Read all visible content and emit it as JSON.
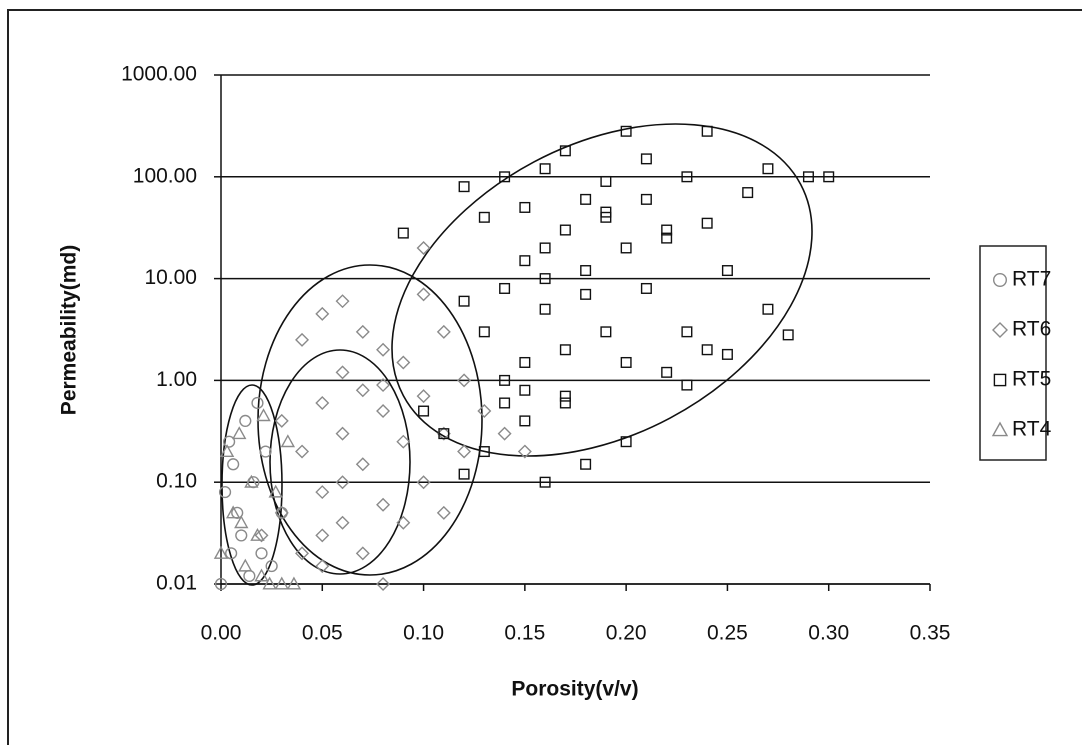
{
  "chart_data": {
    "type": "scatter",
    "x_label": "Porosity(v/v)",
    "y_label": "Permeability(md)",
    "log_y": true,
    "grid": true,
    "legend": "right",
    "xlim": [
      0,
      0.35
    ],
    "ylim": [
      0.01,
      1000
    ],
    "xticks": [
      {
        "value": 0,
        "label": "0.00"
      },
      {
        "value": 0.05,
        "label": "0.05"
      },
      {
        "value": 0.1,
        "label": "0.10"
      },
      {
        "value": 0.15,
        "label": "0.15"
      },
      {
        "value": 0.2,
        "label": "0.20"
      },
      {
        "value": 0.25,
        "label": "0.25"
      },
      {
        "value": 0.3,
        "label": "0.30"
      },
      {
        "value": 0.35,
        "label": "0.35"
      }
    ],
    "yticks": [
      {
        "value": 0.01,
        "label": "0.01"
      },
      {
        "value": 0.1,
        "label": "0.10"
      },
      {
        "value": 1,
        "label": "1.00"
      },
      {
        "value": 10,
        "label": "10.00"
      },
      {
        "value": 100,
        "label": "100.00"
      },
      {
        "value": 1000,
        "label": "1000.00"
      }
    ],
    "series": [
      {
        "name": "RT7",
        "color": "#8a8a8a",
        "marker": "circle",
        "x": [
          0.0,
          0.002,
          0.004,
          0.005,
          0.006,
          0.008,
          0.01,
          0.012,
          0.014,
          0.016,
          0.018,
          0.02,
          0.022,
          0.025,
          0.03
        ],
        "values": [
          0.01,
          0.08,
          0.25,
          0.02,
          0.15,
          0.05,
          0.03,
          0.4,
          0.012,
          0.1,
          0.6,
          0.02,
          0.2,
          0.015,
          0.05
        ]
      },
      {
        "name": "RT6",
        "color": "#8a8a8a",
        "marker": "diamond",
        "x": [
          0.02,
          0.03,
          0.03,
          0.04,
          0.04,
          0.04,
          0.05,
          0.05,
          0.05,
          0.05,
          0.06,
          0.06,
          0.06,
          0.06,
          0.07,
          0.07,
          0.07,
          0.07,
          0.08,
          0.08,
          0.08,
          0.08,
          0.09,
          0.09,
          0.09,
          0.1,
          0.1,
          0.1,
          0.11,
          0.11,
          0.11,
          0.12,
          0.12,
          0.13,
          0.14,
          0.15,
          0.06,
          0.05,
          0.08,
          0.1
        ],
        "values": [
          0.03,
          0.4,
          0.05,
          0.2,
          2.5,
          0.02,
          0.6,
          0.08,
          4.5,
          0.03,
          0.3,
          6,
          0.04,
          1.2,
          0.15,
          3,
          0.02,
          0.8,
          0.5,
          0.06,
          2,
          0.01,
          0.25,
          1.5,
          0.04,
          20,
          0.7,
          0.1,
          0.3,
          3,
          0.05,
          0.2,
          1,
          0.5,
          0.3,
          0.2,
          0.1,
          0.015,
          0.9,
          7
        ]
      },
      {
        "name": "RT5",
        "color": "#111111",
        "marker": "square",
        "x": [
          0.09,
          0.1,
          0.11,
          0.12,
          0.12,
          0.13,
          0.13,
          0.14,
          0.14,
          0.14,
          0.15,
          0.15,
          0.15,
          0.15,
          0.16,
          0.16,
          0.16,
          0.16,
          0.17,
          0.17,
          0.17,
          0.17,
          0.18,
          0.18,
          0.18,
          0.19,
          0.19,
          0.19,
          0.2,
          0.2,
          0.2,
          0.21,
          0.21,
          0.21,
          0.22,
          0.22,
          0.23,
          0.23,
          0.24,
          0.24,
          0.25,
          0.25,
          0.26,
          0.27,
          0.27,
          0.28,
          0.29,
          0.3,
          0.16,
          0.14,
          0.13,
          0.18,
          0.2,
          0.12,
          0.15,
          0.17,
          0.22,
          0.23,
          0.24,
          0.19
        ],
        "values": [
          28,
          0.5,
          0.3,
          80,
          0.12,
          3,
          40,
          8,
          0.6,
          100,
          15,
          1.5,
          50,
          0.4,
          0.1,
          20,
          5,
          120,
          2,
          30,
          0.7,
          180,
          12,
          60,
          0.15,
          40,
          3,
          90,
          280,
          20,
          0.25,
          8,
          150,
          60,
          1.2,
          30,
          100,
          3,
          280,
          35,
          12,
          1.8,
          70,
          120,
          5,
          2.8,
          100,
          100,
          10,
          1,
          0.2,
          7,
          1.5,
          6,
          0.8,
          0.6,
          25,
          0.9,
          2,
          45
        ]
      },
      {
        "name": "RT4",
        "color": "#8a8a8a",
        "marker": "triangle",
        "x": [
          0.0,
          0.003,
          0.006,
          0.009,
          0.012,
          0.015,
          0.018,
          0.021,
          0.024,
          0.027,
          0.03,
          0.033,
          0.036,
          0.01,
          0.02
        ],
        "values": [
          0.02,
          0.2,
          0.05,
          0.3,
          0.015,
          0.1,
          0.03,
          0.45,
          0.01,
          0.08,
          0.01,
          0.25,
          0.01,
          0.04,
          0.012
        ]
      }
    ]
  }
}
